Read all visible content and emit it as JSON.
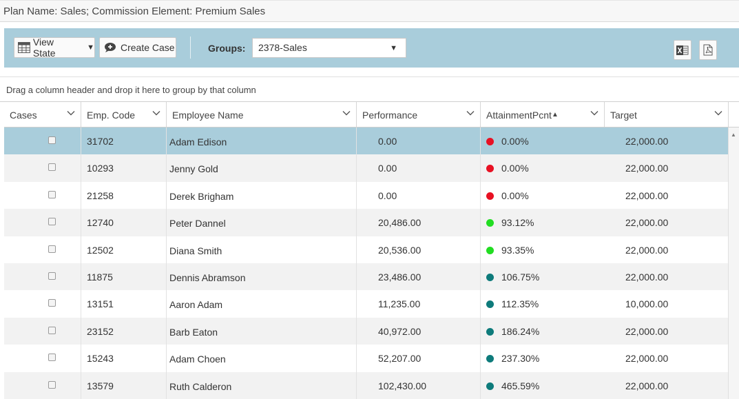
{
  "title": "Plan Name: Sales; Commission Element: Premium Sales",
  "toolbar": {
    "view_state_label": "View State",
    "create_case_label": "Create Case",
    "groups_label": "Groups:",
    "groups_value": "2378-Sales"
  },
  "group_panel_hint": "Drag a column header and drop it here to group by that column",
  "columns": [
    "Cases",
    "Emp. Code",
    "Employee Name",
    "Performance",
    "AttainmentPcnt",
    "Target"
  ],
  "sort": {
    "column": "AttainmentPcnt",
    "direction": "ascending"
  },
  "status_colors": {
    "red": "#e81123",
    "green": "#22dd22",
    "teal": "#0e7b7b"
  },
  "rows": [
    {
      "emp_code": "31702",
      "name": "Adam Edison",
      "performance": "0.00",
      "attainment": "0.00%",
      "status": "red",
      "target": "22,000.00",
      "selected": true
    },
    {
      "emp_code": "10293",
      "name": "Jenny Gold",
      "performance": "0.00",
      "attainment": "0.00%",
      "status": "red",
      "target": "22,000.00"
    },
    {
      "emp_code": "21258",
      "name": "Derek Brigham",
      "performance": "0.00",
      "attainment": "0.00%",
      "status": "red",
      "target": "22,000.00"
    },
    {
      "emp_code": "12740",
      "name": "Peter Dannel",
      "performance": "20,486.00",
      "attainment": "93.12%",
      "status": "green",
      "target": "22,000.00"
    },
    {
      "emp_code": "12502",
      "name": "Diana Smith",
      "performance": "20,536.00",
      "attainment": "93.35%",
      "status": "green",
      "target": "22,000.00"
    },
    {
      "emp_code": "11875",
      "name": "Dennis Abramson",
      "performance": "23,486.00",
      "attainment": "106.75%",
      "status": "teal",
      "target": "22,000.00"
    },
    {
      "emp_code": "13151",
      "name": "Aaron Adam",
      "performance": "11,235.00",
      "attainment": "112.35%",
      "status": "teal",
      "target": "10,000.00"
    },
    {
      "emp_code": "23152",
      "name": "Barb Eaton",
      "performance": "40,972.00",
      "attainment": "186.24%",
      "status": "teal",
      "target": "22,000.00"
    },
    {
      "emp_code": "15243",
      "name": "Adam Choen",
      "performance": "52,207.00",
      "attainment": "237.30%",
      "status": "teal",
      "target": "22,000.00"
    },
    {
      "emp_code": "13579",
      "name": "Ruth Calderon",
      "performance": "102,430.00",
      "attainment": "465.59%",
      "status": "teal",
      "target": "22,000.00"
    }
  ]
}
